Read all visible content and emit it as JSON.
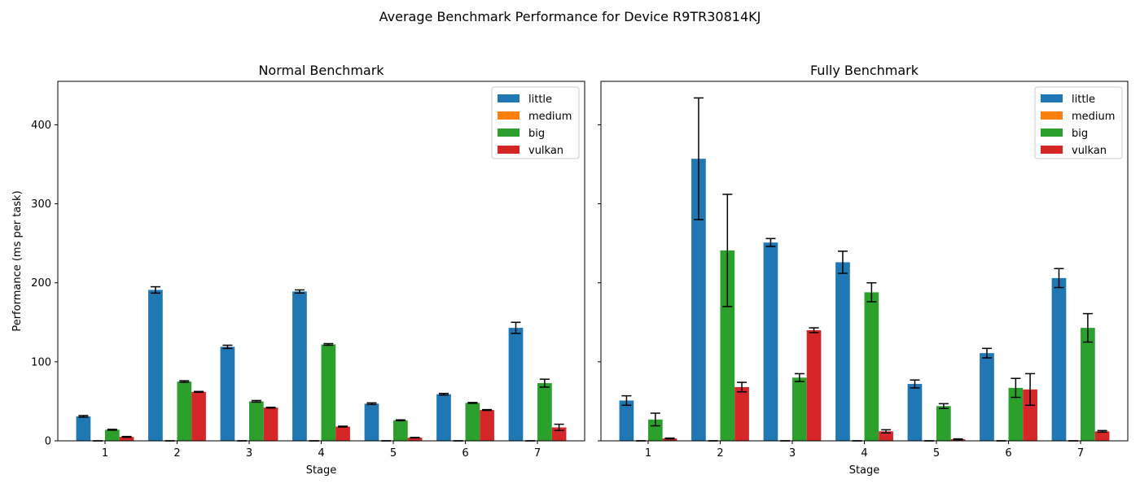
{
  "figure_title": "Average Benchmark Performance for Device R9TR30814KJ",
  "chart_data": [
    {
      "type": "bar",
      "title": "Normal Benchmark",
      "xlabel": "Stage",
      "ylabel": "Performance (ms per task)",
      "categories": [
        "1",
        "2",
        "3",
        "4",
        "5",
        "6",
        "7"
      ],
      "ylim": [
        0,
        455
      ],
      "yticks": [
        0,
        100,
        200,
        300,
        400
      ],
      "legend_position": "top-right",
      "grid": false,
      "series": [
        {
          "name": "little",
          "color": "#1f77b4",
          "values": [
            31,
            191,
            119,
            189,
            47,
            59,
            143
          ],
          "errors": [
            1,
            4,
            2,
            2,
            1,
            1,
            7
          ]
        },
        {
          "name": "medium",
          "color": "#ff7f0e",
          "values": [
            0,
            0,
            0,
            0,
            0,
            0,
            0
          ],
          "errors": [
            0,
            0,
            0,
            0,
            0,
            0,
            0
          ]
        },
        {
          "name": "big",
          "color": "#2ca02c",
          "values": [
            14,
            75,
            50,
            122,
            26,
            48,
            73
          ],
          "errors": [
            0.5,
            1,
            1,
            1,
            0.5,
            0.5,
            5
          ]
        },
        {
          "name": "vulkan",
          "color": "#d62728",
          "values": [
            5,
            62,
            42,
            18,
            4,
            39,
            17
          ],
          "errors": [
            0.5,
            0.5,
            0.5,
            0.5,
            0.3,
            0.5,
            4
          ]
        }
      ]
    },
    {
      "type": "bar",
      "title": "Fully Benchmark",
      "xlabel": "Stage",
      "ylabel": "",
      "categories": [
        "1",
        "2",
        "3",
        "4",
        "5",
        "6",
        "7"
      ],
      "ylim": [
        0,
        455
      ],
      "yticks": [
        0,
        100,
        200,
        300,
        400
      ],
      "legend_position": "top-right",
      "grid": false,
      "series": [
        {
          "name": "little",
          "color": "#1f77b4",
          "values": [
            51,
            357,
            251,
            226,
            72,
            111,
            206
          ],
          "errors": [
            6,
            77,
            5,
            14,
            5,
            6,
            12
          ]
        },
        {
          "name": "medium",
          "color": "#ff7f0e",
          "values": [
            0,
            0,
            0,
            0,
            0,
            0,
            0
          ],
          "errors": [
            0,
            0,
            0,
            0,
            0,
            0,
            0
          ]
        },
        {
          "name": "big",
          "color": "#2ca02c",
          "values": [
            27,
            241,
            80,
            188,
            44,
            67,
            143
          ],
          "errors": [
            8,
            71,
            5,
            12,
            3,
            12,
            18
          ]
        },
        {
          "name": "vulkan",
          "color": "#d62728",
          "values": [
            3,
            68,
            140,
            12,
            2,
            65,
            12
          ],
          "errors": [
            0.5,
            6,
            3,
            2,
            0.5,
            20,
            1
          ]
        }
      ]
    }
  ]
}
